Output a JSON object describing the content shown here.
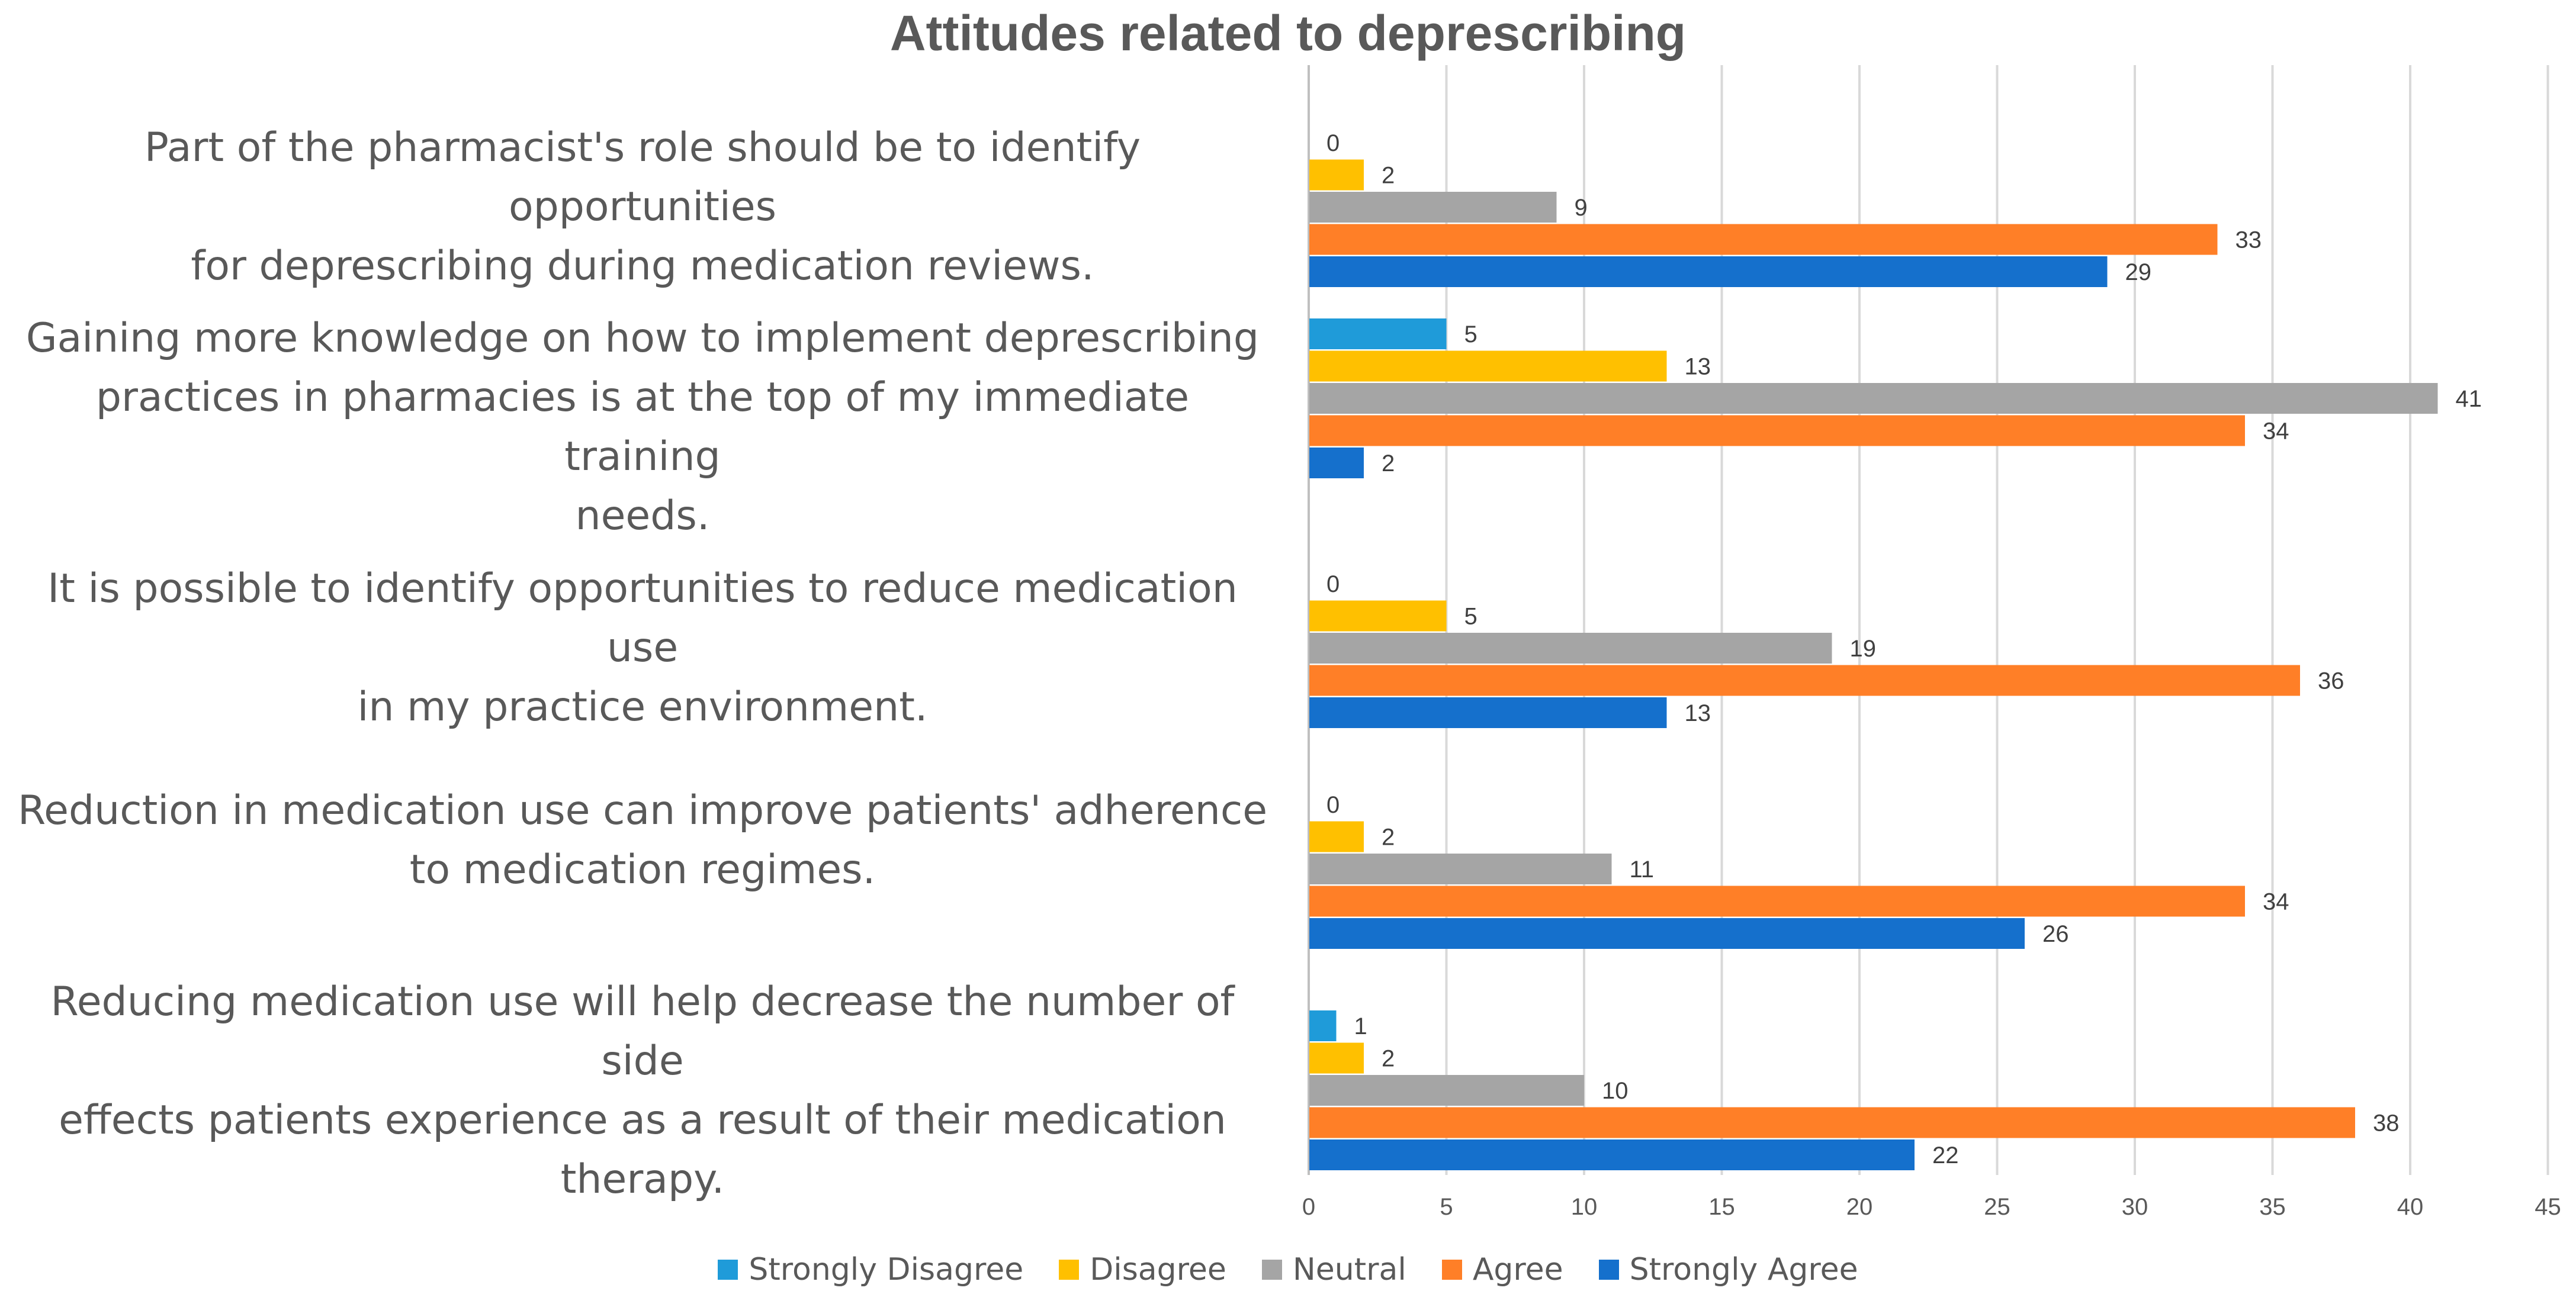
{
  "chart_data": {
    "type": "bar",
    "orientation": "horizontal",
    "title": "Attitudes related to deprescribing",
    "xlabel": "",
    "ylabel": "",
    "xlim": [
      0,
      45
    ],
    "xticks": [
      0,
      5,
      10,
      15,
      20,
      25,
      30,
      35,
      40,
      45
    ],
    "grid": true,
    "legend_position": "bottom",
    "categories": [
      "Part of the pharmacist's role should be to identify opportunities for deprescribing during medication reviews.",
      "Gaining more knowledge on how to implement deprescribing practices in pharmacies is at the top of my immediate training needs.",
      "It is possible to identify opportunities to reduce medication use in my practice environment.",
      "Reduction in medication use can improve patients' adherence to medication regimes.",
      "Reducing medication use will help decrease the number of side effects patients experience as a result of their medication therapy."
    ],
    "category_lines": [
      [
        "Part of the pharmacist's role should be to identify opportunities",
        "for deprescribing during medication reviews."
      ],
      [
        "Gaining more knowledge on how to implement deprescribing",
        "practices in pharmacies is at the top of my immediate training",
        "needs."
      ],
      [
        "It is possible to identify opportunities to reduce medication use",
        "in my practice environment."
      ],
      [
        "Reduction in medication use can improve patients' adherence",
        "to medication regimes."
      ],
      [
        "Reducing medication use will help decrease the number of side",
        "effects patients experience as a result of their medication",
        "therapy."
      ]
    ],
    "series": [
      {
        "name": "Strongly Disagree",
        "color": "#1F9BD9",
        "values": [
          0,
          5,
          0,
          0,
          1
        ]
      },
      {
        "name": "Disagree",
        "color": "#FFC000",
        "values": [
          2,
          13,
          5,
          2,
          2
        ]
      },
      {
        "name": "Neutral",
        "color": "#A5A5A5",
        "values": [
          9,
          41,
          19,
          11,
          10
        ]
      },
      {
        "name": "Agree",
        "color": "#FF7F27",
        "values": [
          33,
          34,
          36,
          34,
          38
        ]
      },
      {
        "name": "Strongly Agree",
        "color": "#1570CC",
        "values": [
          29,
          2,
          13,
          26,
          22
        ]
      }
    ]
  }
}
